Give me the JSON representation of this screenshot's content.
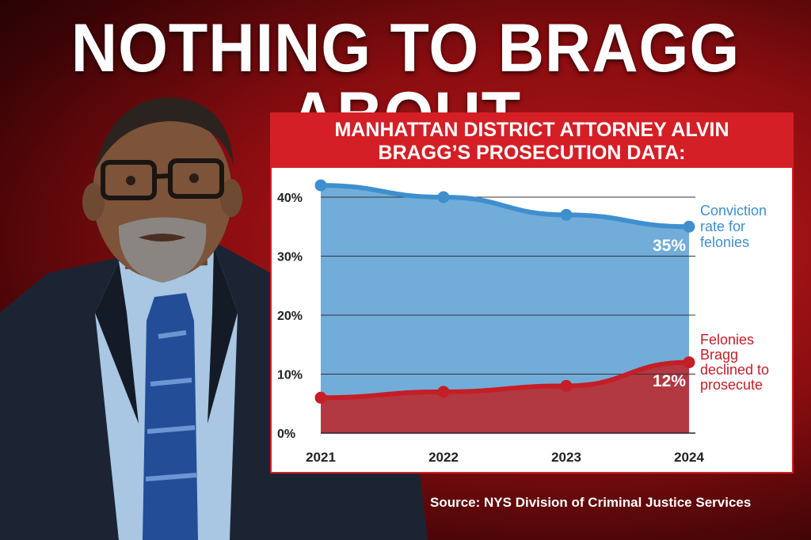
{
  "headline": "NOTHING TO BRAGG ABOUT",
  "source": "Source: NYS Division of Criminal Justice Services",
  "colors": {
    "background": "#8a0d10",
    "panel_border": "#d41f26",
    "conviction": "#3f8fcf",
    "conviction_fill": "#72acd9",
    "declined": "#c41e26",
    "declined_fill": "#b53139"
  },
  "chart_data": {
    "type": "area",
    "title_lines": [
      "MANHATTAN DISTRICT ATTORNEY ALVIN",
      "BRAGG’S PROSECUTION DATA:"
    ],
    "x": [
      "2021",
      "2022",
      "2023",
      "2024"
    ],
    "ylim": [
      0,
      40
    ],
    "yticks": [
      "0%",
      "10%",
      "20%",
      "30%",
      "40%"
    ],
    "grid": true,
    "series": [
      {
        "name_lines": [
          "Conviction",
          "rate for",
          "felonies"
        ],
        "values": [
          42,
          40,
          37,
          35
        ],
        "end_label": "35%",
        "color": "#3f8fcf"
      },
      {
        "name_lines": [
          "Felonies",
          "Bragg",
          "declined to",
          "prosecute"
        ],
        "values": [
          6,
          7,
          8,
          12
        ],
        "end_label": "12%",
        "color": "#c41e26"
      }
    ]
  }
}
